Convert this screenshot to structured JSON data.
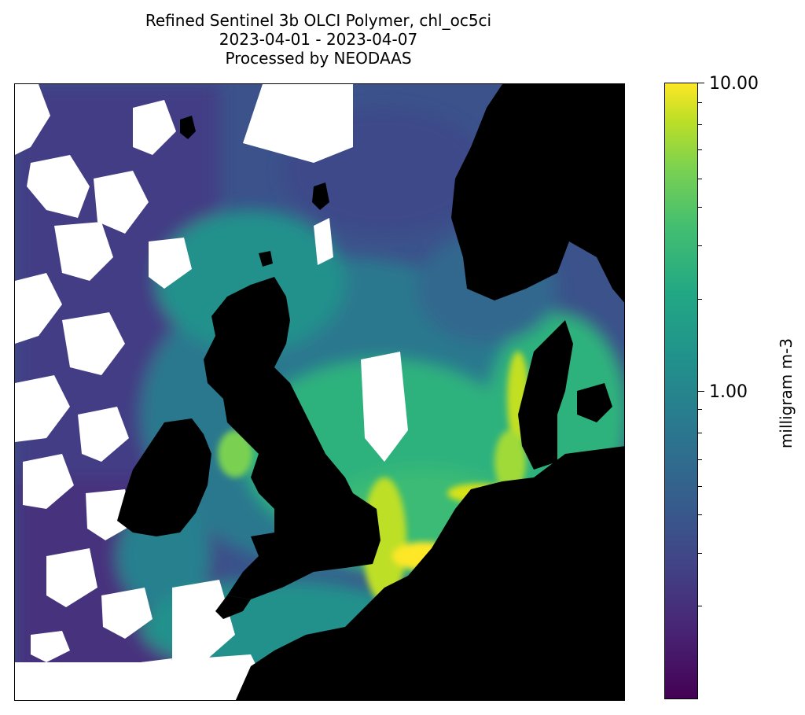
{
  "title": {
    "line1": "Refined Sentinel 3b OLCI Polymer, chl_oc5ci",
    "line2": "2023-04-01 - 2023-04-07",
    "line3": "Processed by NEODAAS"
  },
  "colorbar": {
    "label": "milligram m-3",
    "ticks": [
      "10.00",
      "1.00"
    ],
    "colormap": "viridis",
    "scale": "log",
    "colors": {
      "low": "#440154",
      "mid": "#21918c",
      "high": "#fde725"
    }
  },
  "map": {
    "land_color": "#000000",
    "cloud_color": "#ffffff",
    "open_ocean_color": "#3e4a89",
    "coastal_color": "#2db27d",
    "bloom_color": "#fde725"
  }
}
